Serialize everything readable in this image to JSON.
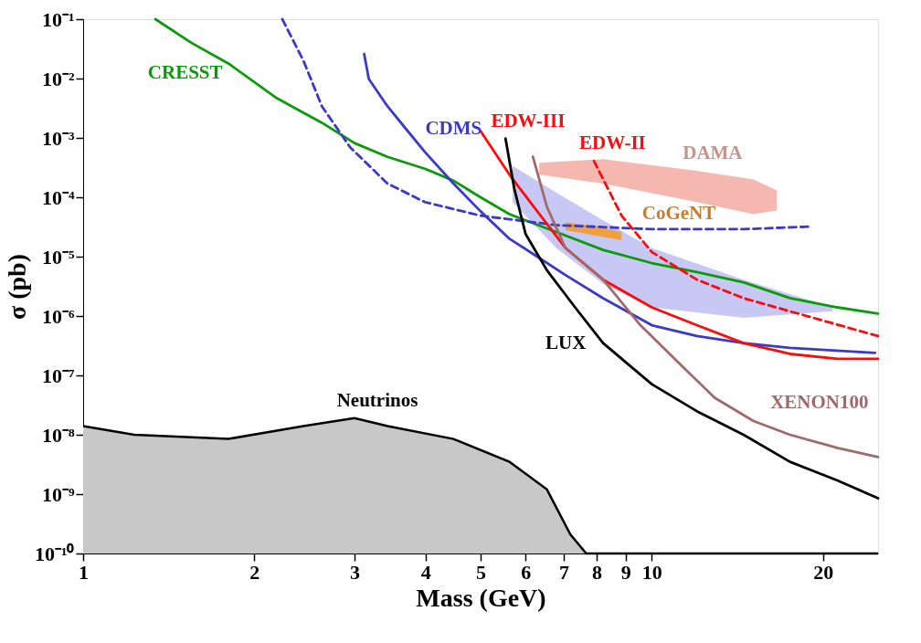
{
  "chart_data": {
    "type": "line",
    "xlabel": "Mass (GeV)",
    "ylabel": "σ (pb)",
    "log": "xy",
    "grid": false,
    "xlim": [
      1,
      25
    ],
    "xticks": [
      1,
      2,
      3,
      4,
      5,
      6,
      7,
      8,
      9,
      10,
      20
    ],
    "ylim": [
      1e-10,
      0.1
    ],
    "yticks": [
      {
        "value": 1e-10,
        "label": "10⁻¹⁰"
      },
      {
        "value": 1e-09,
        "label": "10⁻⁹"
      },
      {
        "value": 1e-08,
        "label": "10⁻⁸"
      },
      {
        "value": 1e-07,
        "label": "10⁻⁷"
      },
      {
        "value": 1e-06,
        "label": "10⁻⁶"
      },
      {
        "value": 1e-05,
        "label": "10⁻⁵"
      },
      {
        "value": 0.0001,
        "label": "10⁻⁴"
      },
      {
        "value": 0.001,
        "label": "10⁻³"
      },
      {
        "value": 0.01,
        "label": "10⁻²"
      },
      {
        "value": 0.1,
        "label": "10⁻¹"
      }
    ],
    "series": [
      {
        "type": "area",
        "color": "#c8c8c8",
        "x": [
          1,
          1.23,
          1.8,
          2.44,
          3,
          3.43,
          4.48,
          5.62,
          6.54,
          7.19,
          7.67,
          25
        ],
        "values": [
          1.4e-08,
          1e-08,
          8.5e-09,
          1.4e-08,
          1.9e-08,
          1.4e-08,
          8.5e-09,
          3.5e-09,
          1.2e-09,
          2.1e-10,
          1e-10,
          1e-10
        ]
      },
      {
        "type": "area",
        "color": "#c8c8f5",
        "x": [
          5.69,
          6.79,
          8.21,
          10,
          14.5,
          20.8
        ],
        "values": [
          null,
          null,
          null,
          null,
          null,
          null
        ],
        "upper": [
          0.00034,
          0.00012,
          4.1e-05,
          1.4e-05,
          4.1e-06,
          1.4e-06
        ],
        "lower": [
          8.3e-05,
          1.4e-05,
          3.5e-06,
          1.4e-06,
          9.3e-07,
          1.2e-06
        ]
      },
      {
        "type": "area",
        "color": "#f5b8b0",
        "x": [
          6.34,
          8.21,
          12,
          15.1,
          16.6
        ],
        "values": [
          null,
          null,
          null,
          null,
          null
        ],
        "upper": [
          0.00038,
          0.00044,
          0.00028,
          0.0002,
          0.00013
        ],
        "lower": [
          0.00024,
          0.00017,
          8.3e-05,
          5.2e-05,
          6e-05
        ]
      },
      {
        "type": "area",
        "color": "#f0a040",
        "x": [
          7.05,
          7.91,
          8.85
        ],
        "values": [
          null,
          null,
          null
        ],
        "upper": [
          3.8e-05,
          3.3e-05,
          2.6e-05
        ],
        "lower": [
          2.8e-05,
          2.3e-05,
          1.9e-05
        ]
      },
      {
        "color": "#0a9a0a",
        "x": [
          1.34,
          1.55,
          1.8,
          2.18,
          2.63,
          3,
          3.43,
          4,
          4.48,
          5,
          5.62,
          6.79,
          8.21,
          10,
          12,
          14.5,
          17.5,
          21.2,
          25
        ],
        "values": [
          0.1,
          0.04,
          0.018,
          0.0048,
          0.0018,
          0.00082,
          0.00048,
          0.0003,
          0.00019,
          0.0001,
          5.2e-05,
          2.6e-05,
          1.3e-05,
          7.8e-06,
          5.5e-06,
          3.7e-06,
          2e-06,
          1.4e-06,
          1.1e-06
        ]
      },
      {
        "color": "#3a3ac8",
        "x": [
          3.12,
          3.18,
          3.43,
          3.7,
          3.99,
          4.48,
          5,
          5.62,
          6.29,
          7.05,
          8.21,
          10,
          12,
          14.5,
          17.5,
          24.7
        ],
        "values": [
          0.026,
          0.0098,
          0.0034,
          0.0014,
          0.00058,
          0.00017,
          5.8e-05,
          2e-05,
          1e-05,
          4.9e-06,
          2e-06,
          7e-07,
          4.6e-07,
          3.5e-07,
          2.9e-07,
          2.4e-07
        ]
      },
      {
        "color": "#3a3ac8",
        "line_style": "dashed",
        "x": [
          2.24,
          2.44,
          2.63,
          2.95,
          3.43,
          3.99,
          5,
          6.79,
          10,
          14.5,
          18.9
        ],
        "values": [
          0.1,
          0.02,
          0.0034,
          0.00069,
          0.00017,
          8.3e-05,
          4.9e-05,
          3.4e-05,
          2.9e-05,
          2.9e-05,
          3.2e-05
        ]
      },
      {
        "color": "#ff0a0a",
        "x": [
          5,
          5.62,
          6.29,
          7.05,
          8.21,
          10,
          12,
          14.5,
          17.5,
          21.2,
          25
        ],
        "values": [
          0.0013,
          0.00024,
          5.8e-05,
          1.4e-05,
          4.1e-06,
          1.4e-06,
          7e-07,
          3.5e-07,
          2.3e-07,
          1.9e-07,
          1.9e-07
        ]
      },
      {
        "color": "#ff0a0a",
        "line_style": "dashed",
        "x": [
          7.91,
          8.85,
          10,
          12,
          14.5,
          17.5,
          25
        ],
        "values": [
          0.00041,
          4.9e-05,
          1.2e-05,
          4.1e-06,
          2e-06,
          1.2e-06,
          4.6e-07
        ]
      },
      {
        "color": "#000000",
        "x": [
          5.53,
          5.73,
          6,
          6.54,
          7.33,
          8.21,
          10,
          12,
          14.5,
          17.5,
          21.2,
          25
        ],
        "values": [
          0.00098,
          0.00014,
          2.4e-05,
          5.9e-06,
          1.4e-06,
          3.5e-07,
          7.1e-08,
          2.5e-08,
          1e-08,
          3.5e-09,
          1.7e-09,
          8.5e-10
        ]
      },
      {
        "color": "#a06a6a",
        "x": [
          6.18,
          6.54,
          7.05,
          8.21,
          9.55,
          11.1,
          12.9,
          15.1,
          17.5,
          21.2,
          25
        ],
        "values": [
          0.00048,
          6.9e-05,
          1.4e-05,
          4.1e-06,
          7e-07,
          1.7e-07,
          4.2e-08,
          1.7e-08,
          1e-08,
          6e-09,
          4.2e-09
        ]
      }
    ],
    "annotations": [
      {
        "text": "CRESST",
        "x": 1.8,
        "y": 0.018
      },
      {
        "text": "EDW-III",
        "x": 5,
        "y": 0.0013
      },
      {
        "text": "EDW-II",
        "x": 7.91,
        "y": 0.00041
      },
      {
        "text": "DAMA",
        "x": 12,
        "y": 0.00028
      },
      {
        "text": "CDMS",
        "x": 4.48,
        "y": 0.00017
      },
      {
        "text": "CoGeNT",
        "x": 8.85,
        "y": 2.6e-05
      },
      {
        "text": "LUX",
        "x": 8.21,
        "y": 3.5e-07
      },
      {
        "text": "XENON100",
        "x": 15.1,
        "y": 1.7e-08
      },
      {
        "text": "Neutrinos",
        "x": 3,
        "y": 1.9e-08
      }
    ]
  }
}
